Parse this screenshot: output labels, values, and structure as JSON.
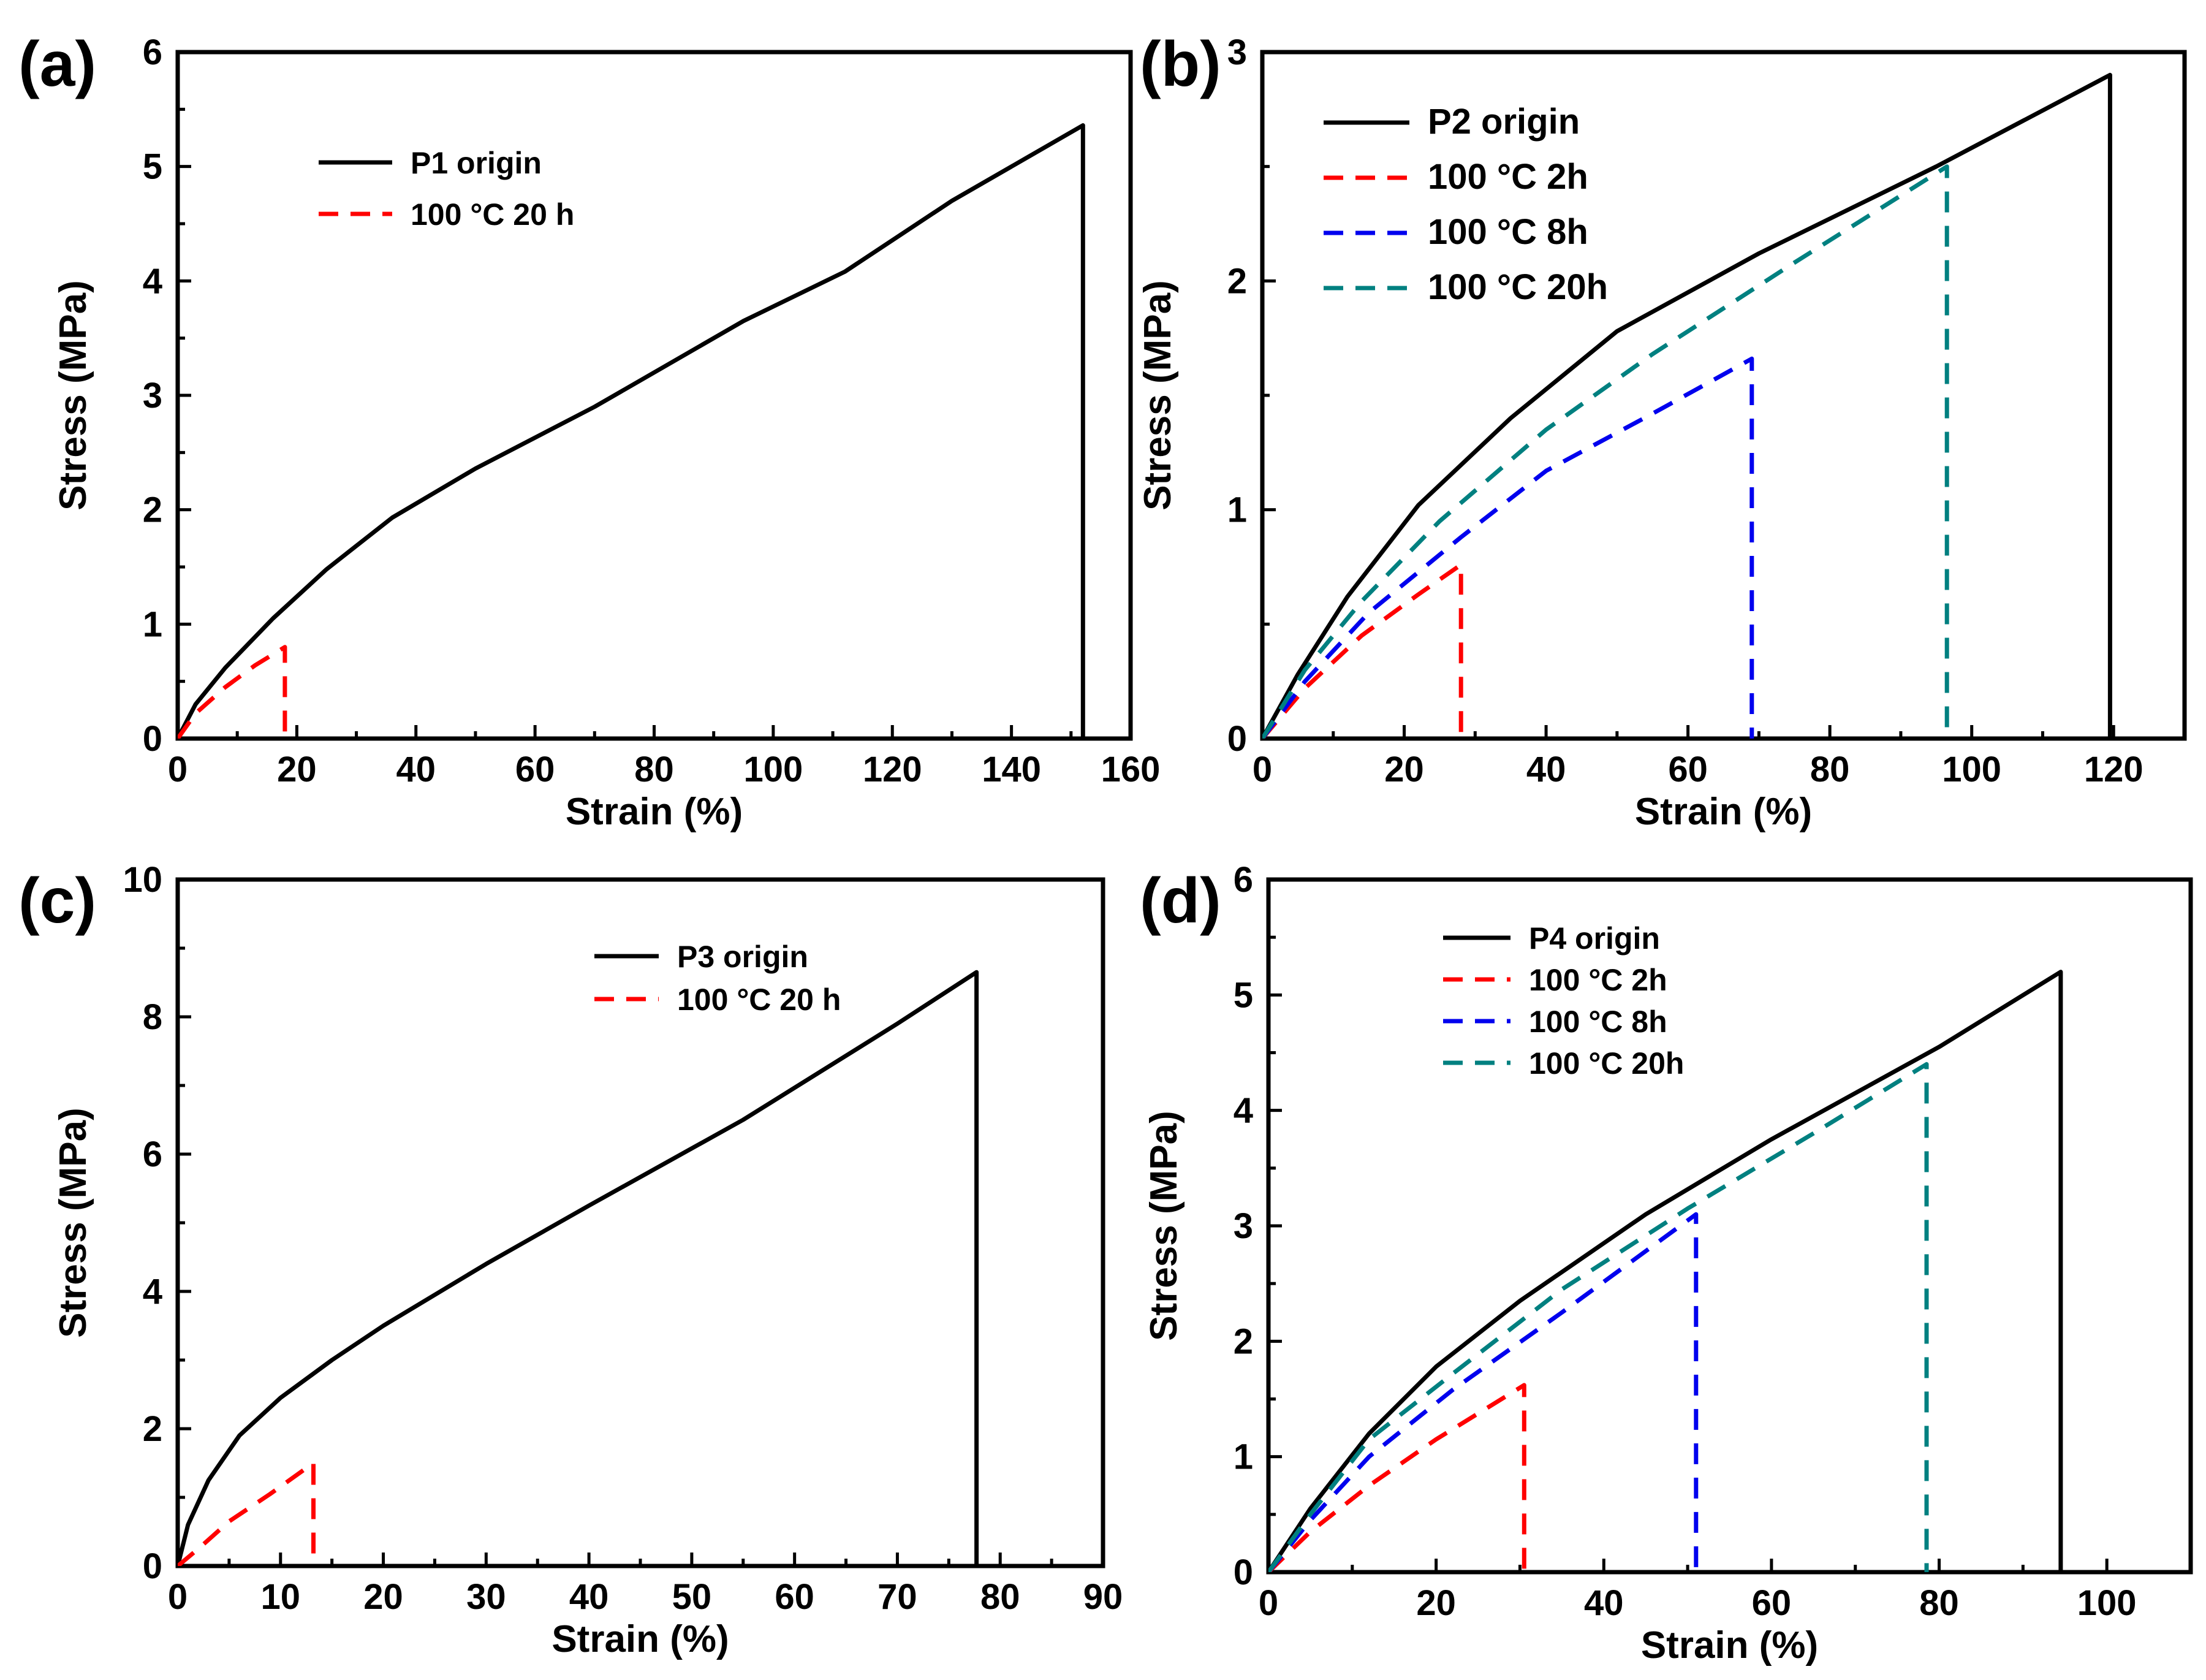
{
  "chart_data": [
    {
      "type": "line",
      "panel_label": "(a)",
      "xlabel": "Strain (%)",
      "ylabel": "Stress (MPa)",
      "xlim": [
        0,
        160
      ],
      "ylim": [
        0,
        6
      ],
      "xticks": [
        "0",
        "20",
        "40",
        "60",
        "80",
        "100",
        "120",
        "140",
        "160"
      ],
      "yticks": [
        "0",
        "1",
        "2",
        "3",
        "4",
        "5",
        "6"
      ],
      "legend_position": "upper-left",
      "series": [
        {
          "name": "P1 origin",
          "color": "#000000",
          "dash": "solid",
          "x": [
            0,
            3,
            8,
            16,
            25,
            36,
            50,
            70,
            95,
            112,
            130,
            152,
            152
          ],
          "y": [
            0,
            0.3,
            0.62,
            1.05,
            1.48,
            1.93,
            2.36,
            2.9,
            3.65,
            4.08,
            4.7,
            5.36,
            0
          ]
        },
        {
          "name": "100 °C 20 h",
          "color": "#ff0000",
          "dash": "dashed",
          "x": [
            0,
            3,
            8,
            13,
            18,
            18
          ],
          "y": [
            0,
            0.22,
            0.45,
            0.64,
            0.8,
            0
          ]
        }
      ]
    },
    {
      "type": "line",
      "panel_label": "(b)",
      "xlabel": "Strain (%)",
      "ylabel": "Stress (MPa)",
      "xlim": [
        0,
        130
      ],
      "ylim": [
        0,
        3
      ],
      "xticks": [
        "0",
        "20",
        "40",
        "60",
        "80",
        "100",
        "120"
      ],
      "yticks": [
        "0",
        "1",
        "2",
        "3"
      ],
      "legend_position": "upper-left",
      "series": [
        {
          "name": "P2 origin",
          "color": "#000000",
          "dash": "solid",
          "x": [
            0,
            5,
            12,
            22,
            35,
            50,
            70,
            95,
            119.5,
            119.5
          ],
          "y": [
            0,
            0.28,
            0.62,
            1.02,
            1.4,
            1.78,
            2.12,
            2.5,
            2.9,
            0
          ]
        },
        {
          "name": "100 °C 2h",
          "color": "#ff0000",
          "dash": "dashed",
          "x": [
            0,
            6,
            14,
            22,
            28,
            28
          ],
          "y": [
            0,
            0.22,
            0.45,
            0.63,
            0.76,
            0
          ]
        },
        {
          "name": "100 °C 8h",
          "color": "#0000ee",
          "dash": "dashed",
          "x": [
            0,
            6,
            15,
            28,
            40,
            55,
            69,
            69
          ],
          "y": [
            0,
            0.25,
            0.55,
            0.88,
            1.17,
            1.42,
            1.66,
            0
          ]
        },
        {
          "name": "100 °C 20h",
          "color": "#008080",
          "dash": "dashed",
          "x": [
            0,
            6,
            14,
            25,
            40,
            55,
            75,
            96.5,
            96.5
          ],
          "y": [
            0,
            0.3,
            0.6,
            0.95,
            1.35,
            1.68,
            2.08,
            2.5,
            0
          ]
        }
      ]
    },
    {
      "type": "line",
      "panel_label": "(c)",
      "xlabel": "Strain (%)",
      "ylabel": "Stress (MPa)",
      "xlim": [
        0,
        90
      ],
      "ylim": [
        0,
        10
      ],
      "xticks": [
        "0",
        "10",
        "20",
        "30",
        "40",
        "50",
        "60",
        "70",
        "80",
        "90"
      ],
      "yticks": [
        "0",
        "2",
        "4",
        "6",
        "8",
        "10"
      ],
      "legend_position": "upper-right",
      "series": [
        {
          "name": "P3 origin",
          "color": "#000000",
          "dash": "solid",
          "x": [
            0,
            1,
            3,
            6,
            10,
            15,
            20,
            30,
            40,
            55,
            70,
            77.7,
            77.7
          ],
          "y": [
            0,
            0.6,
            1.25,
            1.9,
            2.45,
            3.0,
            3.5,
            4.4,
            5.25,
            6.5,
            7.9,
            8.65,
            0
          ]
        },
        {
          "name": "100 °C 20 h",
          "color": "#ff0000",
          "dash": "dashed",
          "x": [
            0,
            2,
            5,
            9,
            13.2,
            13.2
          ],
          "y": [
            0,
            0.25,
            0.65,
            1.05,
            1.5,
            0
          ]
        }
      ]
    },
    {
      "type": "line",
      "panel_label": "(d)",
      "xlabel": "Strain (%)",
      "ylabel": "Stress (MPa)",
      "xlim": [
        0,
        110
      ],
      "ylim": [
        0,
        6
      ],
      "xticks": [
        "0",
        "20",
        "40",
        "60",
        "80",
        "100"
      ],
      "yticks": [
        "0",
        "1",
        "2",
        "3",
        "4",
        "5",
        "6"
      ],
      "legend_position": "upper-left",
      "series": [
        {
          "name": "P4 origin",
          "color": "#000000",
          "dash": "solid",
          "x": [
            0,
            5,
            12,
            20,
            30,
            45,
            60,
            80,
            94.5,
            94.5
          ],
          "y": [
            0,
            0.55,
            1.2,
            1.78,
            2.35,
            3.1,
            3.75,
            4.55,
            5.2,
            0
          ]
        },
        {
          "name": "100 °C 2h",
          "color": "#ff0000",
          "dash": "dashed",
          "x": [
            0,
            5,
            12,
            20,
            30.5,
            30.5
          ],
          "y": [
            0,
            0.35,
            0.75,
            1.15,
            1.62,
            0
          ]
        },
        {
          "name": "100 °C 8h",
          "color": "#0000ee",
          "dash": "dashed",
          "x": [
            0,
            5,
            12,
            22,
            35,
            51,
            51
          ],
          "y": [
            0,
            0.45,
            1.0,
            1.58,
            2.25,
            3.1,
            0
          ]
        },
        {
          "name": "100 °C 20h",
          "color": "#008080",
          "dash": "dashed",
          "x": [
            0,
            5,
            12,
            22,
            35,
            50,
            65,
            78.5,
            78.5
          ],
          "y": [
            0,
            0.5,
            1.15,
            1.72,
            2.45,
            3.15,
            3.8,
            4.4,
            0
          ]
        }
      ]
    }
  ]
}
